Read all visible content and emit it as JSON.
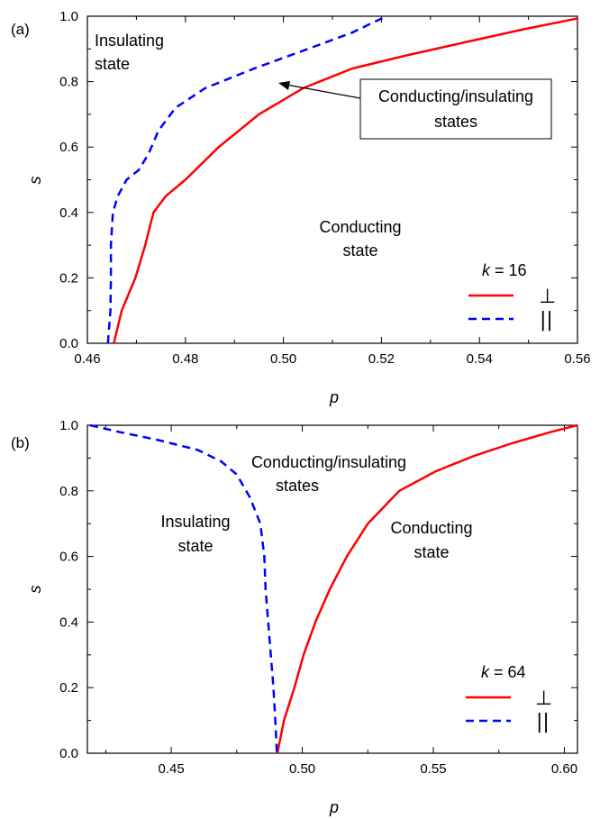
{
  "chart_data": [
    {
      "panel_label": "(a)",
      "type": "line",
      "xlabel": "p",
      "ylabel": "s",
      "xlim": [
        0.46,
        0.56
      ],
      "ylim": [
        0.0,
        1.0
      ],
      "x_ticks": [
        "0.46",
        "0.48",
        "0.50",
        "0.52",
        "0.54",
        "0.56"
      ],
      "y_ticks": [
        "0.0",
        "0.2",
        "0.4",
        "0.6",
        "0.8",
        "1.0"
      ],
      "legend": {
        "title_var": "k",
        "title_eq": " = 16",
        "placement": "bottom-right",
        "entries": [
          "⊥",
          "||"
        ]
      },
      "series": [
        {
          "name": "⊥",
          "color": "#ff0000",
          "dash": "solid",
          "points": [
            [
              0.4654,
              0.0
            ],
            [
              0.467,
              0.1
            ],
            [
              0.4698,
              0.2
            ],
            [
              0.4718,
              0.3
            ],
            [
              0.4735,
              0.4
            ],
            [
              0.476,
              0.45
            ],
            [
              0.48,
              0.5
            ],
            [
              0.4868,
              0.6
            ],
            [
              0.495,
              0.7
            ],
            [
              0.504,
              0.78
            ],
            [
              0.514,
              0.84
            ],
            [
              0.525,
              0.88
            ],
            [
              0.537,
              0.92
            ],
            [
              0.549,
              0.96
            ],
            [
              0.56,
              0.993
            ]
          ]
        },
        {
          "name": "||",
          "color": "#0000ff",
          "dash": "dashed",
          "points": [
            [
              0.4642,
              0.0
            ],
            [
              0.4647,
              0.1
            ],
            [
              0.4648,
              0.2
            ],
            [
              0.4648,
              0.3
            ],
            [
              0.4652,
              0.4
            ],
            [
              0.4662,
              0.45
            ],
            [
              0.468,
              0.5
            ],
            [
              0.4705,
              0.53
            ],
            [
              0.4725,
              0.58
            ],
            [
              0.4745,
              0.65
            ],
            [
              0.478,
              0.72
            ],
            [
              0.484,
              0.78
            ],
            [
              0.494,
              0.84
            ],
            [
              0.505,
              0.9
            ],
            [
              0.514,
              0.95
            ],
            [
              0.521,
              1.0
            ]
          ]
        }
      ],
      "annotations": [
        {
          "lines": [
            "Insulating",
            "state"
          ]
        },
        {
          "lines": [
            "Conducting",
            "state"
          ]
        },
        {
          "lines": [
            "Conducting/insulating",
            "states"
          ],
          "boxed": true,
          "arrow_to": [
            0.4985,
            0.789
          ]
        }
      ]
    },
    {
      "panel_label": "(b)",
      "type": "line",
      "xlabel": "p",
      "ylabel": "s",
      "xlim": [
        0.418,
        0.605
      ],
      "ylim": [
        0.0,
        1.0
      ],
      "x_ticks": [
        "0.45",
        "0.50",
        "0.55",
        "0.60"
      ],
      "y_ticks": [
        "0.0",
        "0.2",
        "0.4",
        "0.6",
        "0.8",
        "1.0"
      ],
      "legend": {
        "title_var": "k",
        "title_eq": " = 64",
        "placement": "bottom-right",
        "entries": [
          "⊥",
          "||"
        ]
      },
      "series": [
        {
          "name": "⊥",
          "color": "#ff0000",
          "dash": "solid",
          "points": [
            [
              0.4905,
              0.0
            ],
            [
              0.493,
              0.1
            ],
            [
              0.497,
              0.2
            ],
            [
              0.5005,
              0.3
            ],
            [
              0.505,
              0.4
            ],
            [
              0.5105,
              0.5
            ],
            [
              0.517,
              0.6
            ],
            [
              0.525,
              0.7
            ],
            [
              0.537,
              0.8
            ],
            [
              0.551,
              0.86
            ],
            [
              0.565,
              0.905
            ],
            [
              0.58,
              0.945
            ],
            [
              0.595,
              0.98
            ],
            [
              0.605,
              1.0
            ]
          ]
        },
        {
          "name": "||",
          "color": "#0000ff",
          "dash": "dashed",
          "points": [
            [
              0.419,
              1.0
            ],
            [
              0.43,
              0.98
            ],
            [
              0.445,
              0.955
            ],
            [
              0.46,
              0.925
            ],
            [
              0.469,
              0.89
            ],
            [
              0.475,
              0.85
            ],
            [
              0.48,
              0.78
            ],
            [
              0.484,
              0.7
            ],
            [
              0.4855,
              0.6
            ],
            [
              0.486,
              0.5
            ],
            [
              0.487,
              0.4
            ],
            [
              0.488,
              0.3
            ],
            [
              0.489,
              0.2
            ],
            [
              0.4897,
              0.1
            ],
            [
              0.4903,
              0.0
            ]
          ]
        }
      ],
      "annotations": [
        {
          "lines": [
            "Conducting/insulating",
            "states"
          ]
        },
        {
          "lines": [
            "Insulating",
            "state"
          ]
        },
        {
          "lines": [
            "Conducting",
            "state"
          ]
        }
      ]
    }
  ]
}
